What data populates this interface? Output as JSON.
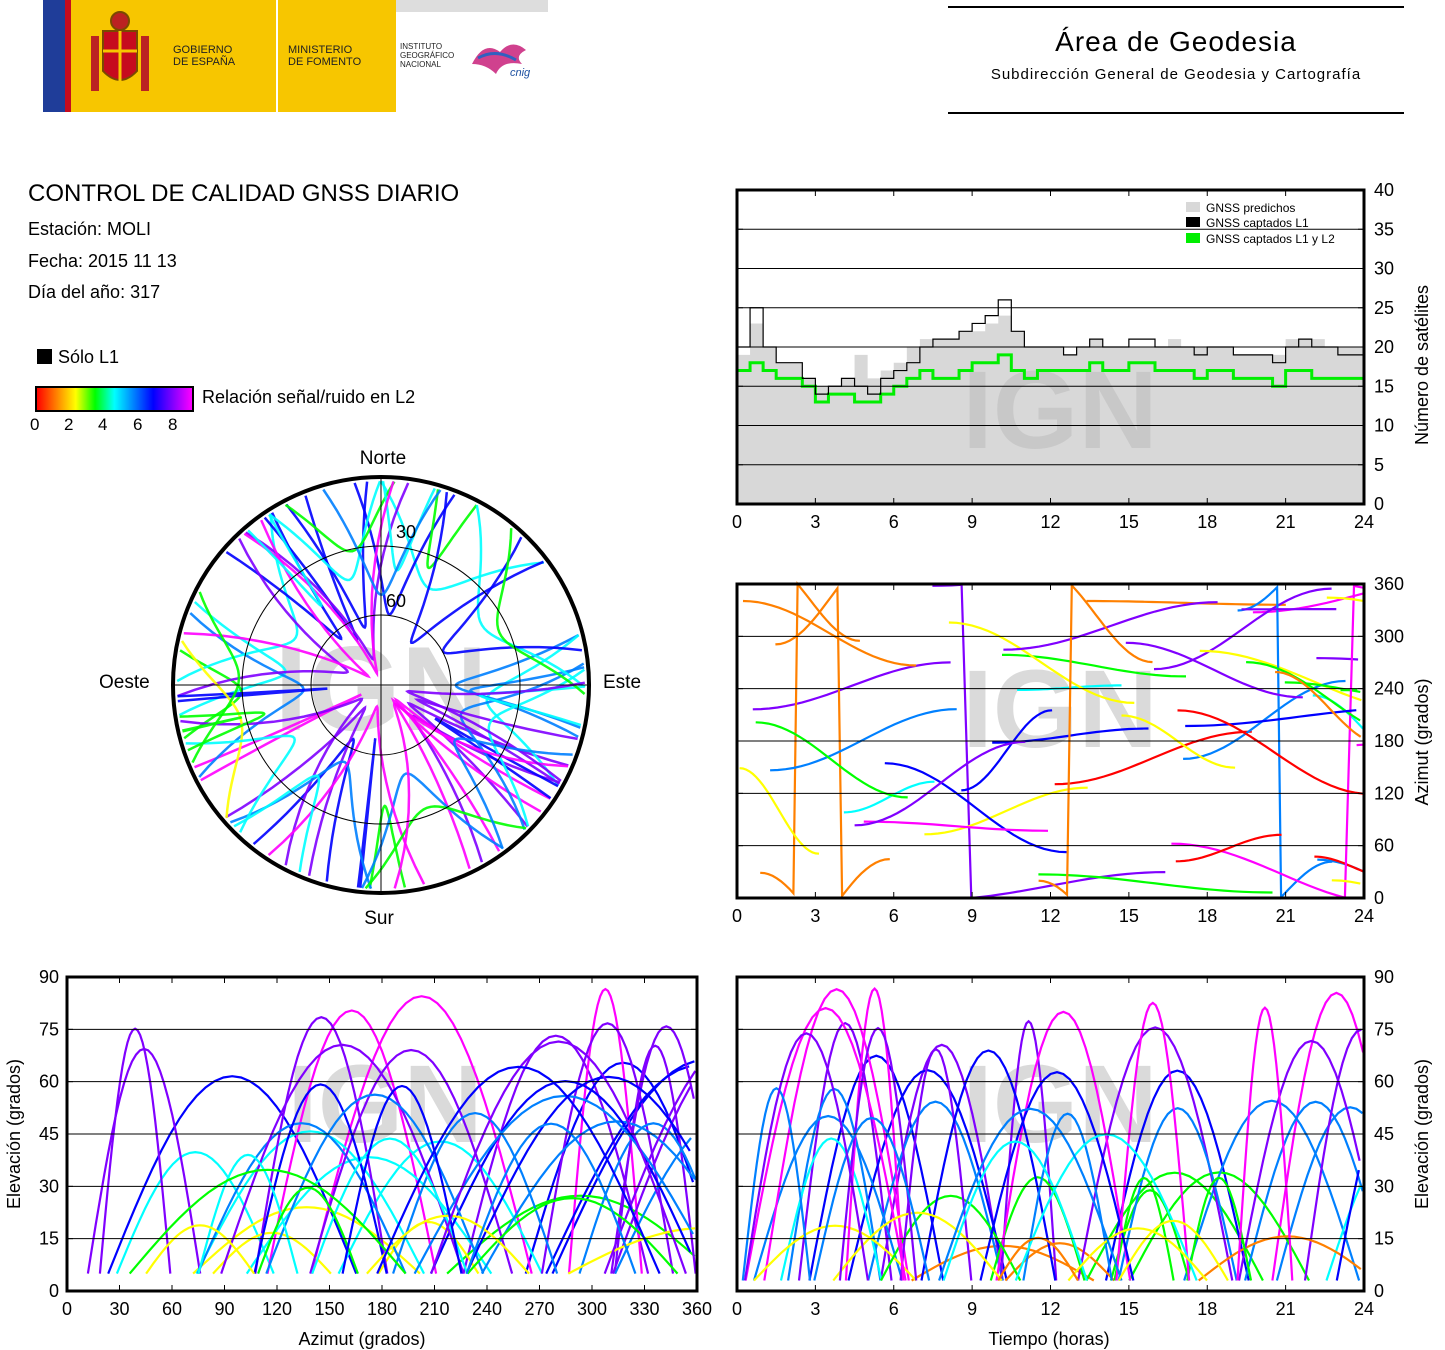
{
  "header": {
    "gobierno": "GOBIERNO\nDE ESPAÑA",
    "ministerio": "MINISTERIO\nDE FOMENTO",
    "instituto": "INSTITUTO\nGEOGRÁFICO\nNACIONAL",
    "cnig": "cnig",
    "area_title": "Área de Geodesia",
    "area_subtitle": "Subdirección General de Geodesia y Cartografía"
  },
  "report": {
    "title": "CONTROL DE CALIDAD GNSS DIARIO",
    "station": "Estación: MOLI",
    "date": "Fecha: 2015 11 13",
    "doy": "Día del año: 317",
    "only_l1": "Sólo L1",
    "snr_label": "Relación señal/ruido en L2",
    "snr_ticks": [
      "0",
      "2",
      "4",
      "6",
      "8"
    ]
  },
  "watermark": "IGN",
  "colors": {
    "snr_scale": [
      "#ff0000",
      "#ff8000",
      "#ffff00",
      "#00ff00",
      "#00ffff",
      "#0080ff",
      "#0000ff",
      "#8000ff",
      "#ff00ff"
    ],
    "predicted": "#d8d8d8",
    "l1": "#000000",
    "l1l2": "#00ee00"
  },
  "chart_data": [
    {
      "type": "polar-skyplot",
      "labels": {
        "north": "Norte",
        "south": "Sur",
        "east": "Este",
        "west": "Oeste"
      },
      "elevation_rings": [
        "30",
        "60"
      ],
      "colorbar": "Relación señal/ruido en L2 (0-8)"
    },
    {
      "type": "area",
      "ylabel": "Número de satélites",
      "xlim": [
        0,
        24
      ],
      "ylim": [
        0,
        40
      ],
      "xticks": [
        "0",
        "3",
        "6",
        "9",
        "12",
        "15",
        "18",
        "21",
        "24"
      ],
      "yticks": [
        "0",
        "5",
        "10",
        "15",
        "20",
        "25",
        "30",
        "35",
        "40"
      ],
      "legend": [
        "GNSS predichos",
        "GNSS captados L1",
        "GNSS captados L1 y L2"
      ],
      "legend_position": "top-right",
      "x": [
        0,
        0.5,
        1,
        1.5,
        2,
        2.5,
        3,
        3.5,
        4,
        4.5,
        5,
        5.5,
        6,
        6.5,
        7,
        7.5,
        8,
        8.5,
        9,
        9.5,
        10,
        10.5,
        11,
        11.5,
        12,
        12.5,
        13,
        13.5,
        14,
        14.5,
        15,
        15.5,
        16,
        16.5,
        17,
        17.5,
        18,
        18.5,
        19,
        19.5,
        20,
        20.5,
        21,
        21.5,
        22,
        22.5,
        23,
        23.5,
        24
      ],
      "series": [
        {
          "name": "GNSS predichos",
          "values": [
            19,
            23,
            20,
            18,
            18,
            16,
            15,
            15,
            16,
            19,
            16,
            17,
            18,
            20,
            21,
            21,
            21,
            22,
            22,
            23,
            24,
            22,
            20,
            20,
            20,
            19,
            20,
            21,
            20,
            20,
            20,
            20,
            20,
            21,
            20,
            20,
            20,
            20,
            19,
            19,
            19,
            19,
            21,
            21,
            21,
            20,
            20,
            20,
            20
          ]
        },
        {
          "name": "GNSS captados L1",
          "values": [
            20,
            25,
            20,
            18,
            18,
            16,
            14,
            15,
            16,
            15,
            14,
            16,
            17,
            18,
            20,
            21,
            21,
            22,
            23,
            24,
            26,
            22,
            20,
            20,
            20,
            19,
            20,
            21,
            20,
            20,
            21,
            21,
            20,
            20,
            20,
            19,
            20,
            20,
            19,
            19,
            19,
            18,
            20,
            21,
            20,
            20,
            19,
            19,
            20
          ]
        },
        {
          "name": "GNSS captados L1 y L2",
          "values": [
            17,
            18,
            17,
            16,
            16,
            15,
            13,
            14,
            14,
            13,
            13,
            14,
            15,
            16,
            17,
            16,
            16,
            17,
            18,
            18,
            19,
            17,
            16,
            17,
            17,
            17,
            17,
            18,
            17,
            17,
            18,
            18,
            17,
            17,
            17,
            16,
            17,
            17,
            16,
            16,
            16,
            15,
            17,
            17,
            16,
            16,
            16,
            16,
            16
          ]
        }
      ]
    },
    {
      "type": "scatter",
      "ylabel": "Azimut (grados)",
      "xlim": [
        0,
        24
      ],
      "ylim": [
        0,
        360
      ],
      "xticks": [
        "0",
        "3",
        "6",
        "9",
        "12",
        "15",
        "18",
        "21",
        "24"
      ],
      "yticks": [
        "0",
        "60",
        "120",
        "180",
        "240",
        "300",
        "360"
      ]
    },
    {
      "type": "scatter",
      "xlabel": "Azimut (grados)",
      "ylabel": "Elevación (grados)",
      "xlim": [
        0,
        360
      ],
      "ylim": [
        0,
        90
      ],
      "xticks": [
        "0",
        "30",
        "60",
        "90",
        "120",
        "150",
        "180",
        "210",
        "240",
        "270",
        "300",
        "330",
        "360"
      ],
      "yticks": [
        "0",
        "15",
        "30",
        "45",
        "60",
        "75",
        "90"
      ]
    },
    {
      "type": "scatter",
      "xlabel": "Tiempo (horas)",
      "ylabel": "Elevación (grados)",
      "xlim": [
        0,
        24
      ],
      "ylim": [
        0,
        90
      ],
      "xticks": [
        "0",
        "3",
        "6",
        "9",
        "12",
        "15",
        "18",
        "21",
        "24"
      ],
      "yticks": [
        "0",
        "15",
        "30",
        "45",
        "60",
        "75",
        "90"
      ]
    }
  ]
}
